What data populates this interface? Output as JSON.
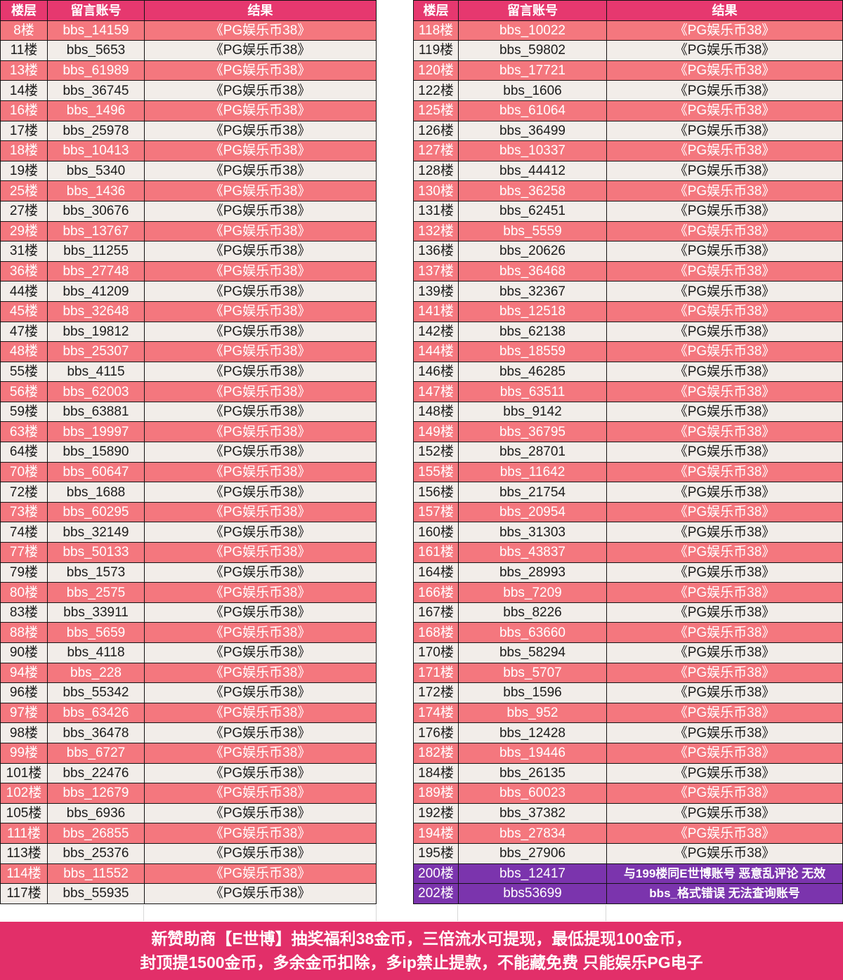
{
  "columns": [
    "楼层",
    "留言账号",
    "结果"
  ],
  "colors": {
    "header_bg": "#e6386f",
    "pink_row_bg": "#f4777e",
    "light_row_bg": "#f2ede9",
    "purple_row_bg": "#7b34ad",
    "footer_bg": "#e22f69",
    "border": "#141414",
    "text_dark": "#1c1c1c",
    "text_light": "#ffffff"
  },
  "left_table": {
    "rows": [
      {
        "floor": "8楼",
        "account": "bbs_14159",
        "result": "《PG娱乐币38》",
        "variant": "pink"
      },
      {
        "floor": "11楼",
        "account": "bbs_5653",
        "result": "《PG娱乐币38》",
        "variant": "white"
      },
      {
        "floor": "13楼",
        "account": "bbs_61989",
        "result": "《PG娱乐币38》",
        "variant": "pink"
      },
      {
        "floor": "14楼",
        "account": "bbs_36745",
        "result": "《PG娱乐币38》",
        "variant": "white"
      },
      {
        "floor": "16楼",
        "account": "bbs_1496",
        "result": "《PG娱乐币38》",
        "variant": "pink"
      },
      {
        "floor": "17楼",
        "account": "bbs_25978",
        "result": "《PG娱乐币38》",
        "variant": "white"
      },
      {
        "floor": "18楼",
        "account": "bbs_10413",
        "result": "《PG娱乐币38》",
        "variant": "pink"
      },
      {
        "floor": "19楼",
        "account": "bbs_5340",
        "result": "《PG娱乐币38》",
        "variant": "white"
      },
      {
        "floor": "25楼",
        "account": "bbs_1436",
        "result": "《PG娱乐币38》",
        "variant": "pink"
      },
      {
        "floor": "27楼",
        "account": "bbs_30676",
        "result": "《PG娱乐币38》",
        "variant": "white"
      },
      {
        "floor": "29楼",
        "account": "bbs_13767",
        "result": "《PG娱乐币38》",
        "variant": "pink"
      },
      {
        "floor": "31楼",
        "account": "bbs_11255",
        "result": "《PG娱乐币38》",
        "variant": "white"
      },
      {
        "floor": "36楼",
        "account": "bbs_27748",
        "result": "《PG娱乐币38》",
        "variant": "pink"
      },
      {
        "floor": "44楼",
        "account": "bbs_41209",
        "result": "《PG娱乐币38》",
        "variant": "white"
      },
      {
        "floor": "45楼",
        "account": "bbs_32648",
        "result": "《PG娱乐币38》",
        "variant": "pink"
      },
      {
        "floor": "47楼",
        "account": "bbs_19812",
        "result": "《PG娱乐币38》",
        "variant": "white"
      },
      {
        "floor": "48楼",
        "account": "bbs_25307",
        "result": "《PG娱乐币38》",
        "variant": "pink"
      },
      {
        "floor": "55楼",
        "account": "bbs_4115",
        "result": "《PG娱乐币38》",
        "variant": "white"
      },
      {
        "floor": "56楼",
        "account": "bbs_62003",
        "result": "《PG娱乐币38》",
        "variant": "pink"
      },
      {
        "floor": "59楼",
        "account": "bbs_63881",
        "result": "《PG娱乐币38》",
        "variant": "white"
      },
      {
        "floor": "63楼",
        "account": "bbs_19997",
        "result": "《PG娱乐币38》",
        "variant": "pink"
      },
      {
        "floor": "64楼",
        "account": "bbs_15890",
        "result": "《PG娱乐币38》",
        "variant": "white"
      },
      {
        "floor": "70楼",
        "account": "bbs_60647",
        "result": "《PG娱乐币38》",
        "variant": "pink"
      },
      {
        "floor": "72楼",
        "account": "bbs_1688",
        "result": "《PG娱乐币38》",
        "variant": "white"
      },
      {
        "floor": "73楼",
        "account": "bbs_60295",
        "result": "《PG娱乐币38》",
        "variant": "pink"
      },
      {
        "floor": "74楼",
        "account": "bbs_32149",
        "result": "《PG娱乐币38》",
        "variant": "white"
      },
      {
        "floor": "77楼",
        "account": "bbs_50133",
        "result": "《PG娱乐币38》",
        "variant": "pink"
      },
      {
        "floor": "79楼",
        "account": "bbs_1573",
        "result": "《PG娱乐币38》",
        "variant": "white"
      },
      {
        "floor": "80楼",
        "account": "bbs_2575",
        "result": "《PG娱乐币38》",
        "variant": "pink"
      },
      {
        "floor": "83楼",
        "account": "bbs_33911",
        "result": "《PG娱乐币38》",
        "variant": "white"
      },
      {
        "floor": "88楼",
        "account": "bbs_5659",
        "result": "《PG娱乐币38》",
        "variant": "pink"
      },
      {
        "floor": "90楼",
        "account": "bbs_4118",
        "result": "《PG娱乐币38》",
        "variant": "white"
      },
      {
        "floor": "94楼",
        "account": "bbs_228",
        "result": "《PG娱乐币38》",
        "variant": "pink"
      },
      {
        "floor": "96楼",
        "account": "bbs_55342",
        "result": "《PG娱乐币38》",
        "variant": "white"
      },
      {
        "floor": "97楼",
        "account": "bbs_63426",
        "result": "《PG娱乐币38》",
        "variant": "pink"
      },
      {
        "floor": "98楼",
        "account": "bbs_36478",
        "result": "《PG娱乐币38》",
        "variant": "white"
      },
      {
        "floor": "99楼",
        "account": "bbs_6727",
        "result": "《PG娱乐币38》",
        "variant": "pink"
      },
      {
        "floor": "101楼",
        "account": "bbs_22476",
        "result": "《PG娱乐币38》",
        "variant": "white"
      },
      {
        "floor": "102楼",
        "account": "bbs_12679",
        "result": "《PG娱乐币38》",
        "variant": "pink"
      },
      {
        "floor": "105楼",
        "account": "bbs_6936",
        "result": "《PG娱乐币38》",
        "variant": "white"
      },
      {
        "floor": "111楼",
        "account": "bbs_26855",
        "result": "《PG娱乐币38》",
        "variant": "pink"
      },
      {
        "floor": "113楼",
        "account": "bbs_25376",
        "result": "《PG娱乐币38》",
        "variant": "white"
      },
      {
        "floor": "114楼",
        "account": "bbs_11552",
        "result": "《PG娱乐币38》",
        "variant": "pink"
      },
      {
        "floor": "117楼",
        "account": "bbs_55935",
        "result": "《PG娱乐币38》",
        "variant": "white"
      }
    ]
  },
  "right_table": {
    "rows": [
      {
        "floor": "118楼",
        "account": "bbs_10022",
        "result": "《PG娱乐币38》",
        "variant": "pink"
      },
      {
        "floor": "119楼",
        "account": "bbs_59802",
        "result": "《PG娱乐币38》",
        "variant": "white"
      },
      {
        "floor": "120楼",
        "account": "bbs_17721",
        "result": "《PG娱乐币38》",
        "variant": "pink"
      },
      {
        "floor": "122楼",
        "account": "bbs_1606",
        "result": "《PG娱乐币38》",
        "variant": "white"
      },
      {
        "floor": "125楼",
        "account": "bbs_61064",
        "result": "《PG娱乐币38》",
        "variant": "pink"
      },
      {
        "floor": "126楼",
        "account": "bbs_36499",
        "result": "《PG娱乐币38》",
        "variant": "white"
      },
      {
        "floor": "127楼",
        "account": "bbs_10337",
        "result": "《PG娱乐币38》",
        "variant": "pink"
      },
      {
        "floor": "128楼",
        "account": "bbs_44412",
        "result": "《PG娱乐币38》",
        "variant": "white"
      },
      {
        "floor": "130楼",
        "account": "bbs_36258",
        "result": "《PG娱乐币38》",
        "variant": "pink"
      },
      {
        "floor": "131楼",
        "account": "bbs_62451",
        "result": "《PG娱乐币38》",
        "variant": "white"
      },
      {
        "floor": "132楼",
        "account": "bbs_5559",
        "result": "《PG娱乐币38》",
        "variant": "pink"
      },
      {
        "floor": "136楼",
        "account": "bbs_20626",
        "result": "《PG娱乐币38》",
        "variant": "white"
      },
      {
        "floor": "137楼",
        "account": "bbs_36468",
        "result": "《PG娱乐币38》",
        "variant": "pink"
      },
      {
        "floor": "139楼",
        "account": "bbs_32367",
        "result": "《PG娱乐币38》",
        "variant": "white"
      },
      {
        "floor": "141楼",
        "account": "bbs_12518",
        "result": "《PG娱乐币38》",
        "variant": "pink"
      },
      {
        "floor": "142楼",
        "account": "bbs_62138",
        "result": "《PG娱乐币38》",
        "variant": "white"
      },
      {
        "floor": "144楼",
        "account": "bbs_18559",
        "result": "《PG娱乐币38》",
        "variant": "pink"
      },
      {
        "floor": "146楼",
        "account": "bbs_46285",
        "result": "《PG娱乐币38》",
        "variant": "white"
      },
      {
        "floor": "147楼",
        "account": "bbs_63511",
        "result": "《PG娱乐币38》",
        "variant": "pink"
      },
      {
        "floor": "148楼",
        "account": "bbs_9142",
        "result": "《PG娱乐币38》",
        "variant": "white"
      },
      {
        "floor": "149楼",
        "account": "bbs_36795",
        "result": "《PG娱乐币38》",
        "variant": "pink"
      },
      {
        "floor": "152楼",
        "account": "bbs_28701",
        "result": "《PG娱乐币38》",
        "variant": "white"
      },
      {
        "floor": "155楼",
        "account": "bbs_11642",
        "result": "《PG娱乐币38》",
        "variant": "pink"
      },
      {
        "floor": "156楼",
        "account": "bbs_21754",
        "result": "《PG娱乐币38》",
        "variant": "white"
      },
      {
        "floor": "157楼",
        "account": "bbs_20954",
        "result": "《PG娱乐币38》",
        "variant": "pink"
      },
      {
        "floor": "160楼",
        "account": "bbs_31303",
        "result": "《PG娱乐币38》",
        "variant": "white"
      },
      {
        "floor": "161楼",
        "account": "bbs_43837",
        "result": "《PG娱乐币38》",
        "variant": "pink"
      },
      {
        "floor": "164楼",
        "account": "bbs_28993",
        "result": "《PG娱乐币38》",
        "variant": "white"
      },
      {
        "floor": "166楼",
        "account": "bbs_7209",
        "result": "《PG娱乐币38》",
        "variant": "pink"
      },
      {
        "floor": "167楼",
        "account": "bbs_8226",
        "result": "《PG娱乐币38》",
        "variant": "white"
      },
      {
        "floor": "168楼",
        "account": "bbs_63660",
        "result": "《PG娱乐币38》",
        "variant": "pink"
      },
      {
        "floor": "170楼",
        "account": "bbs_58294",
        "result": "《PG娱乐币38》",
        "variant": "white"
      },
      {
        "floor": "171楼",
        "account": "bbs_5707",
        "result": "《PG娱乐币38》",
        "variant": "pink"
      },
      {
        "floor": "172楼",
        "account": "bbs_1596",
        "result": "《PG娱乐币38》",
        "variant": "white"
      },
      {
        "floor": "174楼",
        "account": "bbs_952",
        "result": "《PG娱乐币38》",
        "variant": "pink"
      },
      {
        "floor": "176楼",
        "account": "bbs_12428",
        "result": "《PG娱乐币38》",
        "variant": "white"
      },
      {
        "floor": "182楼",
        "account": "bbs_19446",
        "result": "《PG娱乐币38》",
        "variant": "pink"
      },
      {
        "floor": "184楼",
        "account": "bbs_26135",
        "result": "《PG娱乐币38》",
        "variant": "white"
      },
      {
        "floor": "189楼",
        "account": "bbs_60023",
        "result": "《PG娱乐币38》",
        "variant": "pink"
      },
      {
        "floor": "192楼",
        "account": "bbs_37382",
        "result": "《PG娱乐币38》",
        "variant": "white"
      },
      {
        "floor": "194楼",
        "account": "bbs_27834",
        "result": "《PG娱乐币38》",
        "variant": "pink"
      },
      {
        "floor": "195楼",
        "account": "bbs_27906",
        "result": "《PG娱乐币38》",
        "variant": "white"
      },
      {
        "floor": "200楼",
        "account": "bbs_12417",
        "result": "与199楼同E世博账号 恶意乱评论 无效",
        "variant": "purple"
      },
      {
        "floor": "202楼",
        "account": "bbs53699",
        "result": "bbs_格式错误 无法查询账号",
        "variant": "purple"
      }
    ]
  },
  "footer": {
    "line1": "新赞助商【E世博】抽奖福利38金币，三倍流水可提现，最低提现100金币，",
    "line2": "封顶提1500金币，多余金币扣除，多ip禁止提款，不能藏免费 只能娱乐PG电子"
  }
}
